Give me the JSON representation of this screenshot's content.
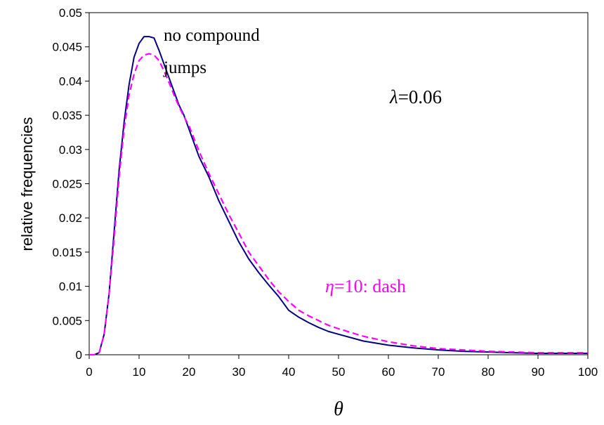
{
  "chart_data": {
    "type": "line",
    "title": "",
    "xlabel": "θ",
    "ylabel": "relative frequencies",
    "xlim": [
      0,
      100
    ],
    "ylim": [
      0,
      0.05
    ],
    "x_ticks": [
      "0",
      "10",
      "20",
      "30",
      "40",
      "50",
      "60",
      "70",
      "80",
      "90",
      "100"
    ],
    "y_ticks": [
      "0",
      "0.005",
      "0.01",
      "0.015",
      "0.02",
      "0.025",
      "0.03",
      "0.035",
      "0.04",
      "0.045",
      "0.05"
    ],
    "grid": false,
    "series": [
      {
        "name": "no compound jumps",
        "color": "#000080",
        "style": "solid",
        "x": [
          0,
          1,
          2,
          3,
          4,
          5,
          6,
          7,
          8,
          9,
          10,
          11,
          12,
          13,
          14,
          15,
          16,
          17,
          18,
          19,
          20,
          22,
          24,
          26,
          28,
          30,
          32,
          34,
          36,
          38,
          40,
          42,
          44,
          46,
          48,
          50,
          55,
          60,
          65,
          70,
          75,
          80,
          85,
          90,
          95,
          100
        ],
        "y": [
          0,
          0,
          0.0003,
          0.003,
          0.009,
          0.018,
          0.027,
          0.034,
          0.0395,
          0.0435,
          0.0455,
          0.0465,
          0.0465,
          0.0463,
          0.0445,
          0.0425,
          0.0405,
          0.0385,
          0.0365,
          0.035,
          0.033,
          0.029,
          0.026,
          0.0225,
          0.0195,
          0.0165,
          0.014,
          0.012,
          0.0102,
          0.0085,
          0.0065,
          0.0055,
          0.0047,
          0.004,
          0.0034,
          0.003,
          0.002,
          0.0014,
          0.001,
          0.0007,
          0.0005,
          0.0004,
          0.0003,
          0.0002,
          0.0002,
          0.0002
        ]
      },
      {
        "name": "η=10: dash",
        "color": "#ff00ff",
        "style": "dashed",
        "x": [
          0,
          1,
          2,
          3,
          4,
          5,
          6,
          7,
          8,
          9,
          10,
          11,
          12,
          13,
          14,
          15,
          16,
          17,
          18,
          19,
          20,
          22,
          24,
          26,
          28,
          30,
          32,
          34,
          36,
          38,
          40,
          42,
          44,
          46,
          48,
          50,
          55,
          60,
          65,
          70,
          75,
          80,
          85,
          90,
          95,
          100
        ],
        "y": [
          0,
          0,
          0.0003,
          0.003,
          0.009,
          0.017,
          0.026,
          0.033,
          0.038,
          0.041,
          0.043,
          0.0438,
          0.044,
          0.0438,
          0.043,
          0.0415,
          0.0398,
          0.038,
          0.0363,
          0.0348,
          0.0335,
          0.0298,
          0.0265,
          0.0235,
          0.0205,
          0.0178,
          0.015,
          0.013,
          0.011,
          0.0092,
          0.0078,
          0.0065,
          0.0057,
          0.005,
          0.0043,
          0.0038,
          0.0027,
          0.0019,
          0.0013,
          0.0009,
          0.0007,
          0.0005,
          0.0004,
          0.0003,
          0.0003,
          0.0003
        ]
      }
    ],
    "annotations": {
      "no_compound_line1": "no compound",
      "no_compound_line2": "jumps",
      "lambda_symbol": "λ",
      "lambda_value": "=0.06",
      "eta_symbol": "η",
      "eta_value": "=10: dash"
    }
  }
}
